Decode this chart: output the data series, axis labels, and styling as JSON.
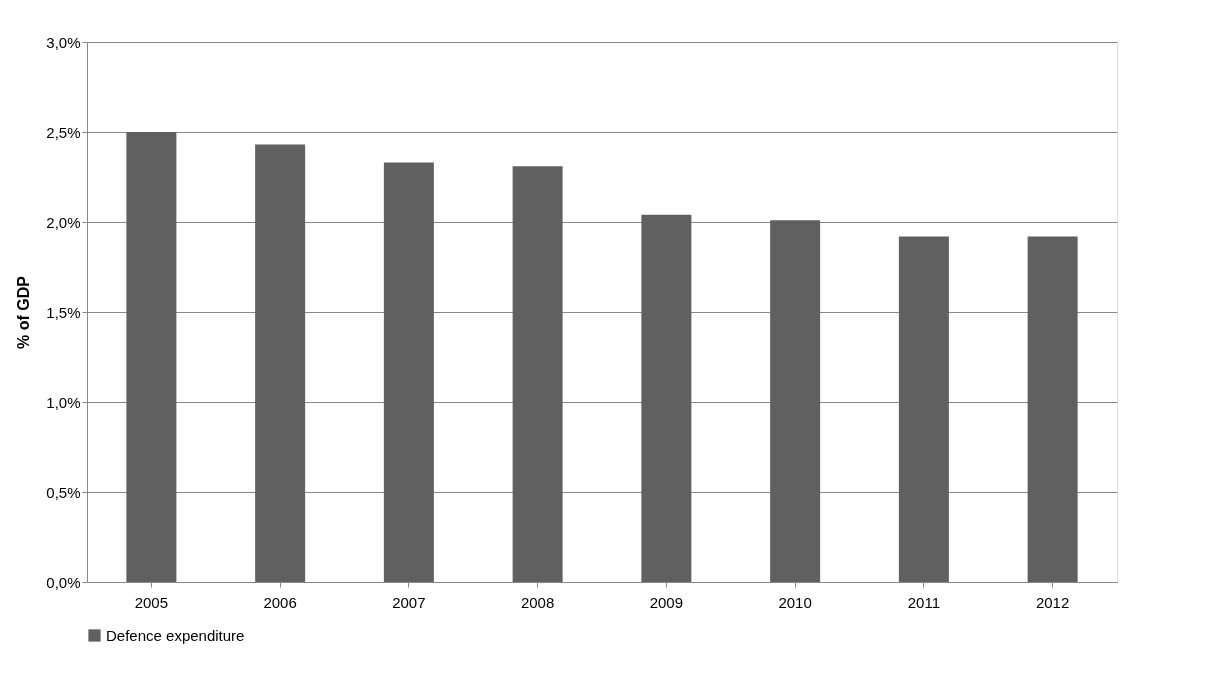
{
  "chart_data": {
    "type": "bar",
    "ylabel": "% of GDP",
    "categories": [
      "2005",
      "2006",
      "2007",
      "2008",
      "2009",
      "2010",
      "2011",
      "2012"
    ],
    "series": [
      {
        "name": "Defence expenditure",
        "color": "#606060",
        "values": [
          2.5,
          2.43,
          2.33,
          2.31,
          2.04,
          2.01,
          1.92,
          1.92
        ]
      }
    ],
    "ylim": [
      0,
      3.0
    ],
    "yticks": [
      {
        "value": 0,
        "label": "0,0%"
      },
      {
        "value": 0.5,
        "label": "0,5%"
      },
      {
        "value": 1.0,
        "label": "1,0%"
      },
      {
        "value": 1.5,
        "label": "1,5%"
      },
      {
        "value": 2.0,
        "label": "2,0%"
      },
      {
        "value": 2.5,
        "label": "2,5%"
      },
      {
        "value": 3.0,
        "label": "3,0%"
      }
    ],
    "grid": "y",
    "legend": "bottom"
  }
}
